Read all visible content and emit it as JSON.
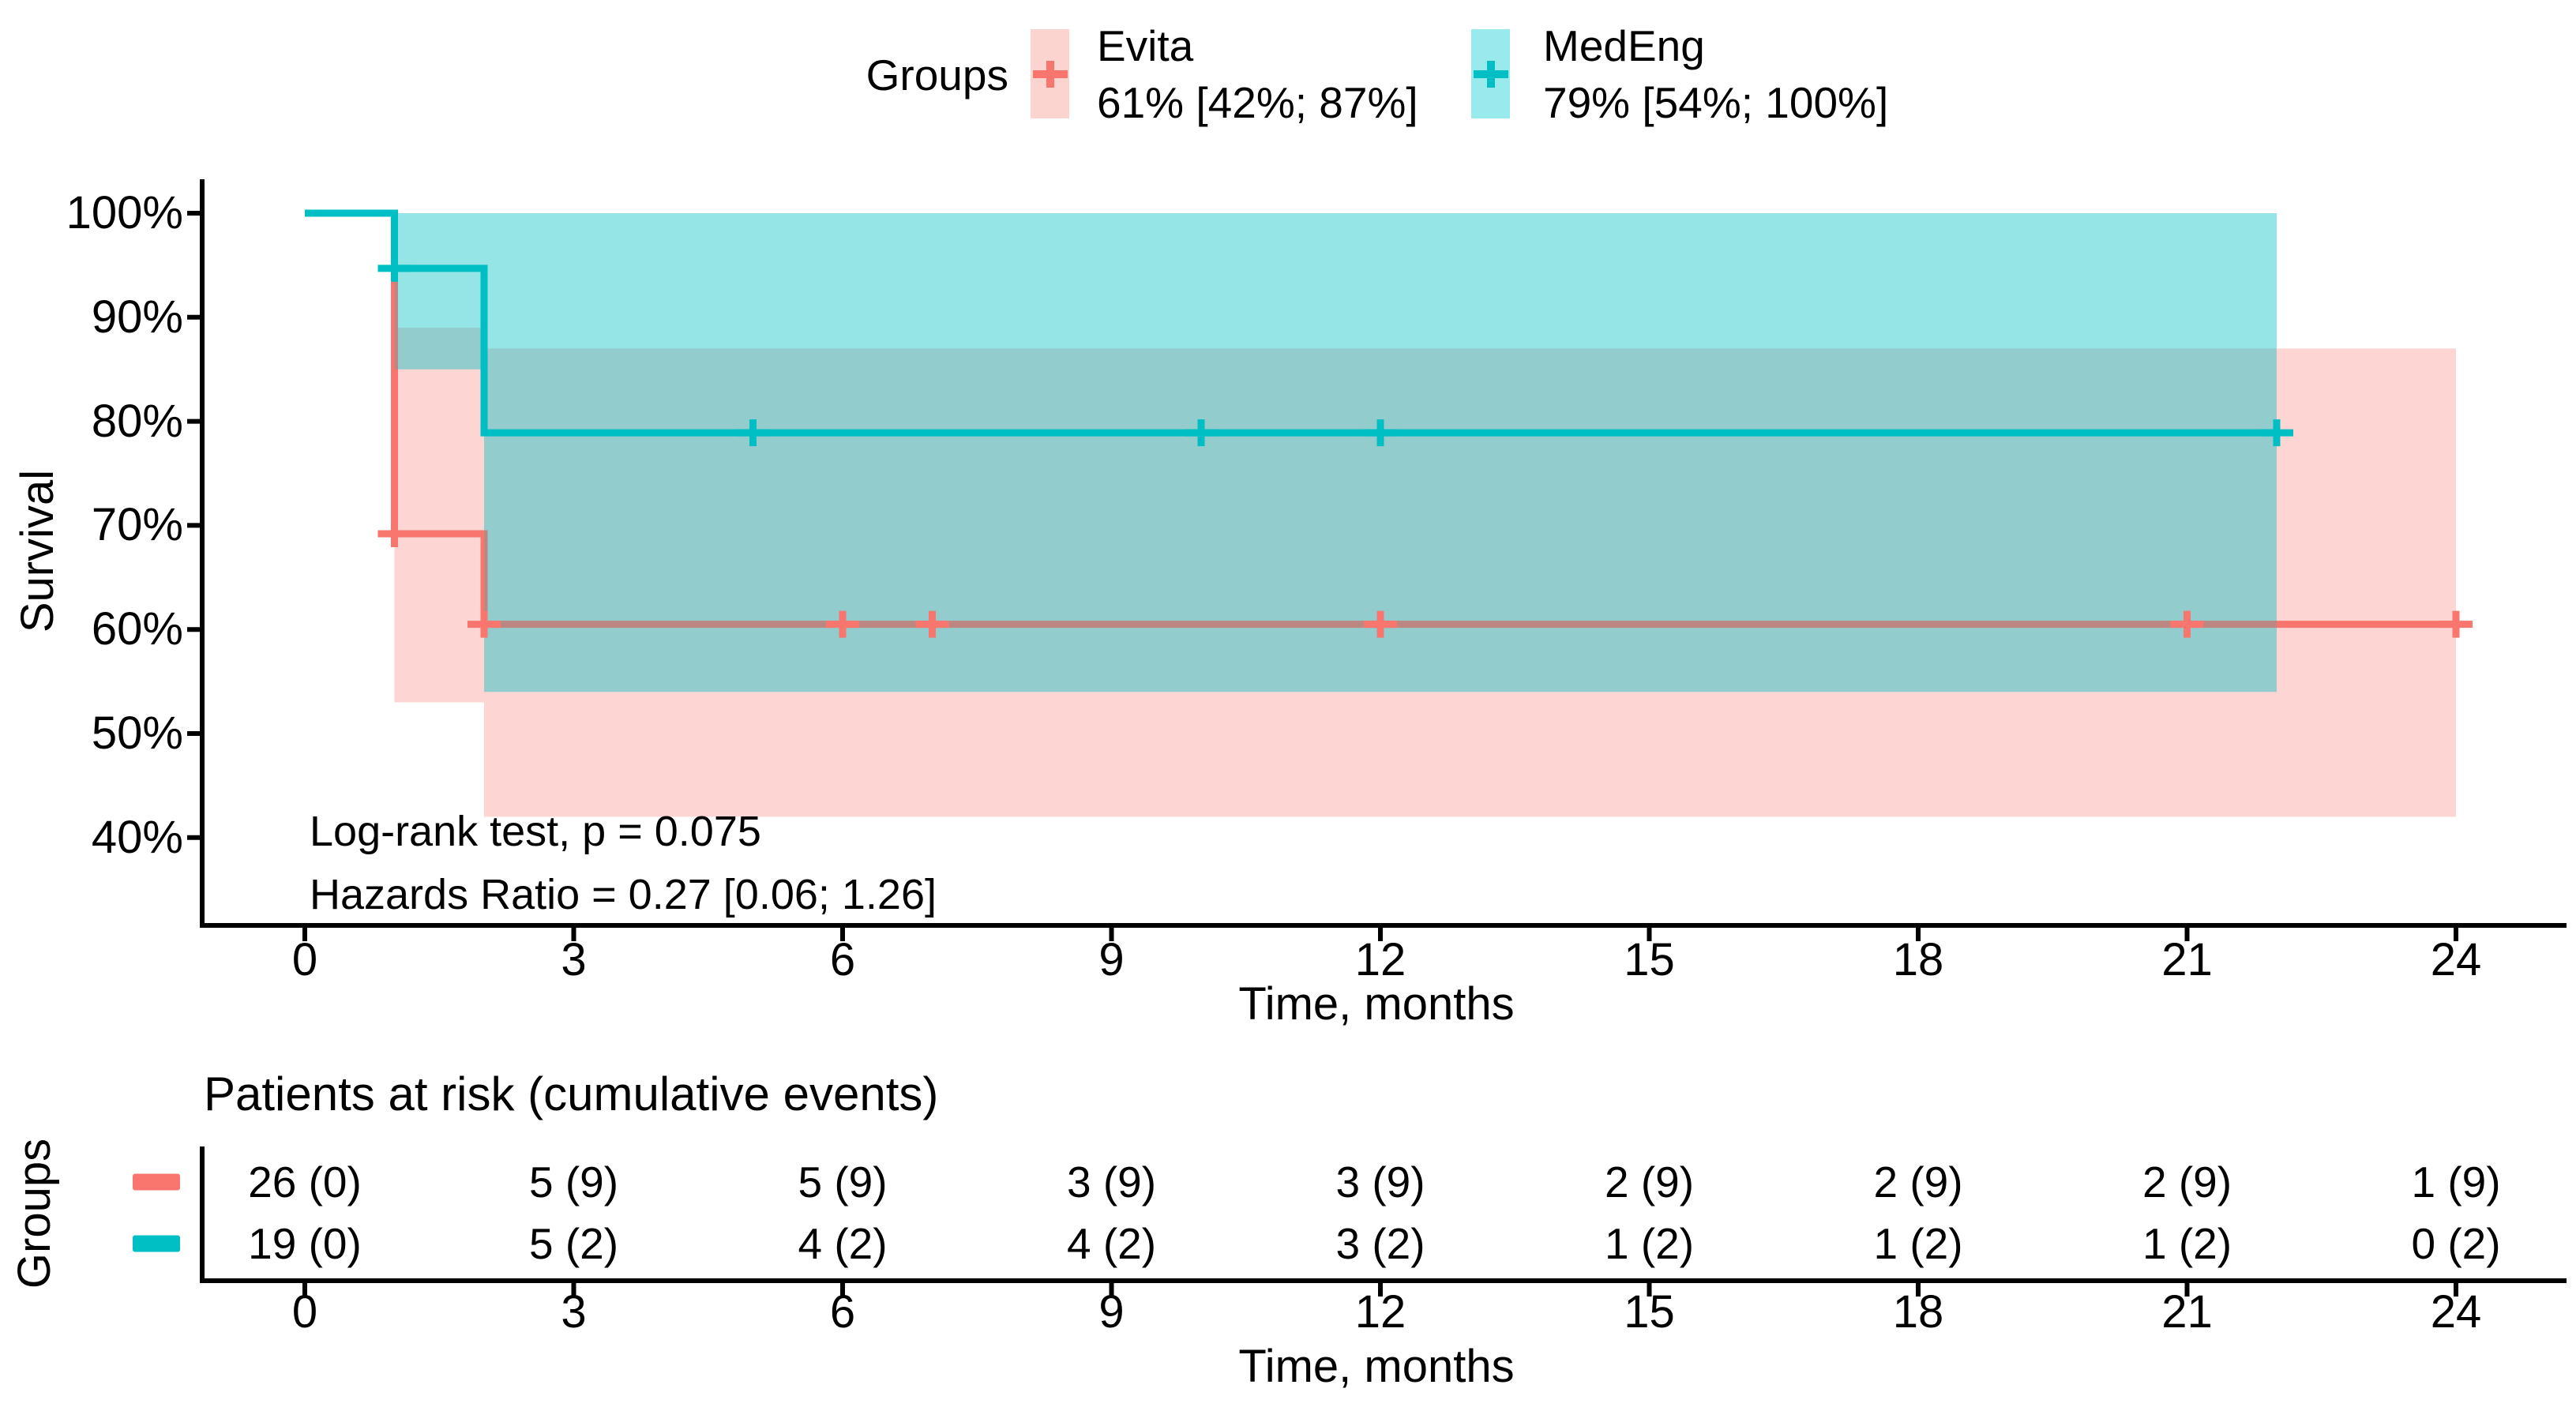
{
  "accent_colors": {
    "evita": "#F8766D",
    "medeng": "#00BFC4"
  },
  "legend": {
    "title": "Groups",
    "items": [
      {
        "name": "Evita",
        "estimate": "61% [42%; 87%]",
        "color": "#F8766D",
        "key_fill": "#FBD4D0"
      },
      {
        "name": "MedEng",
        "estimate": "79% [54%; 100%]",
        "color": "#00BFC4",
        "key_fill": "#99EAED"
      }
    ]
  },
  "y_axis": {
    "label": "Survival",
    "ticks": [
      {
        "value": 100,
        "label": "100%"
      },
      {
        "value": 90,
        "label": "90%"
      },
      {
        "value": 80,
        "label": "80%"
      },
      {
        "value": 70,
        "label": "70%"
      },
      {
        "value": 60,
        "label": "60%"
      },
      {
        "value": 50,
        "label": "50%"
      },
      {
        "value": 40,
        "label": "40%"
      }
    ]
  },
  "x_axis": {
    "label": "Time, months",
    "ticks": [
      0,
      3,
      6,
      9,
      12,
      15,
      18,
      21,
      24
    ]
  },
  "annotations": {
    "logrank": "Log-rank test, p = 0.075",
    "hazards": "Hazards Ratio = 0.27 [0.06; 1.26]"
  },
  "risk_table": {
    "title": "Patients at risk (cumulative events)",
    "axis_label": "Groups",
    "x_label": "Time, months",
    "x_ticks": [
      0,
      3,
      6,
      9,
      12,
      15,
      18,
      21,
      24
    ],
    "rows": [
      {
        "group": "Evita",
        "color": "#F8766D",
        "values": [
          "26 (0)",
          "5 (9)",
          "5 (9)",
          "3 (9)",
          "3 (9)",
          "2 (9)",
          "2 (9)",
          "2 (9)",
          "1 (9)"
        ]
      },
      {
        "group": "MedEng",
        "color": "#00BFC4",
        "values": [
          "19 (0)",
          "5 (2)",
          "4 (2)",
          "4 (2)",
          "3 (2)",
          "1 (2)",
          "1 (2)",
          "1 (2)",
          "0 (2)"
        ]
      }
    ]
  },
  "chart_data": {
    "type": "line",
    "subtype": "kaplan-meier-step",
    "title": "",
    "xlabel": "Time, months",
    "ylabel": "Survival",
    "xlim": [
      0,
      24
    ],
    "ylim_percent": [
      40,
      100
    ],
    "grid": false,
    "legend_position": "top",
    "series": [
      {
        "name": "Evita",
        "color": "#F8766D",
        "step_points": [
          [
            0,
            100
          ],
          [
            1,
            100
          ],
          [
            1,
            69.2
          ],
          [
            2,
            69.2
          ],
          [
            2,
            60.5
          ],
          [
            24,
            60.5
          ]
        ],
        "censor_marks": [
          [
            1,
            69.2
          ],
          [
            2,
            60.5
          ],
          [
            6,
            60.5
          ],
          [
            7,
            60.5
          ],
          [
            12,
            60.5
          ],
          [
            21,
            60.5
          ],
          [
            24,
            60.5
          ]
        ],
        "confidence_band": [
          {
            "x0": 1,
            "x1": 2,
            "low": 53,
            "high": 89
          },
          {
            "x0": 2,
            "x1": 24,
            "low": 42,
            "high": 87
          }
        ],
        "final_estimate": "61% [42%; 87%]"
      },
      {
        "name": "MedEng",
        "color": "#00BFC4",
        "step_points": [
          [
            0,
            100
          ],
          [
            1,
            100
          ],
          [
            1,
            94.7
          ],
          [
            2,
            94.7
          ],
          [
            2,
            78.9
          ],
          [
            22,
            78.9
          ]
        ],
        "censor_marks": [
          [
            1,
            94.7
          ],
          [
            5,
            78.9
          ],
          [
            10,
            78.9
          ],
          [
            12,
            78.9
          ],
          [
            22,
            78.9
          ]
        ],
        "confidence_band": [
          {
            "x0": 1,
            "x1": 2,
            "low": 85,
            "high": 100
          },
          {
            "x0": 2,
            "x1": 22,
            "low": 54,
            "high": 100
          }
        ],
        "final_estimate": "79% [54%; 100%]"
      }
    ],
    "stats": {
      "logrank_p": 0.075,
      "hazard_ratio": 0.27,
      "hr_ci": [
        0.06,
        1.26
      ]
    }
  }
}
